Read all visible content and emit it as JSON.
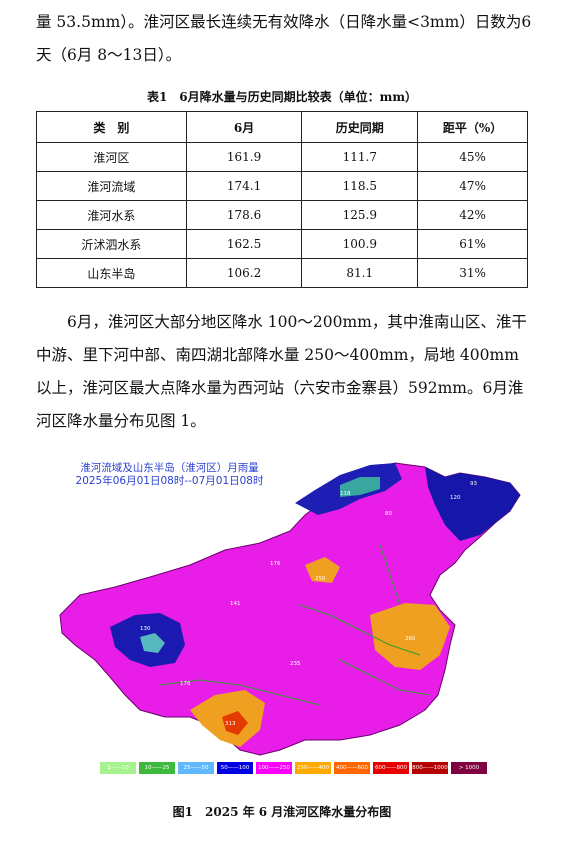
{
  "para1": "量 53.5mm）。淮河区最长连续无有效降水（日降水量<3mm）日数为6天（6月 8～13日）。",
  "table": {
    "caption": "表1　6月降水量与历史同期比较表（单位：mm）",
    "headers": [
      "类　别",
      "6月",
      "历史同期",
      "距平（%）"
    ],
    "rows": [
      [
        "淮河区",
        "161.9",
        "111.7",
        "45%"
      ],
      [
        "淮河流域",
        "174.1",
        "118.5",
        "47%"
      ],
      [
        "淮河水系",
        "178.6",
        "125.9",
        "42%"
      ],
      [
        "沂沭泗水系",
        "162.5",
        "100.9",
        "61%"
      ],
      [
        "山东半岛",
        "106.2",
        "81.1",
        "31%"
      ]
    ]
  },
  "para2": "6月，淮河区大部分地区降水 100～200mm，其中淮南山区、淮干中游、里下河中部、南四湖北部降水量 250～400mm，局地 400mm 以上，淮河区最大点降水量为西河站（六安市金寨县）592mm。6月淮河区降水量分布见图 1。",
  "map": {
    "title_line1": "淮河流域及山东半岛（淮河区）月雨量",
    "title_line2": "2025年06月01日08时--07月01日08时",
    "legend": [
      {
        "label": "1——10",
        "color": "#a6f28f"
      },
      {
        "label": "10——25",
        "color": "#3dba3d"
      },
      {
        "label": "25——50",
        "color": "#61b8ff"
      },
      {
        "label": "50——100",
        "color": "#0000e1"
      },
      {
        "label": "100——250",
        "color": "#fa00fa"
      },
      {
        "label": "250——400",
        "color": "#ffaa00"
      },
      {
        "label": "400——600",
        "color": "#ff6600"
      },
      {
        "label": "600——800",
        "color": "#e60000"
      },
      {
        "label": "800——1000",
        "color": "#b40000"
      },
      {
        "label": "> 1000",
        "color": "#800040"
      }
    ]
  },
  "figure_caption": "图1　2025 年 6 月淮河区降水量分布图"
}
